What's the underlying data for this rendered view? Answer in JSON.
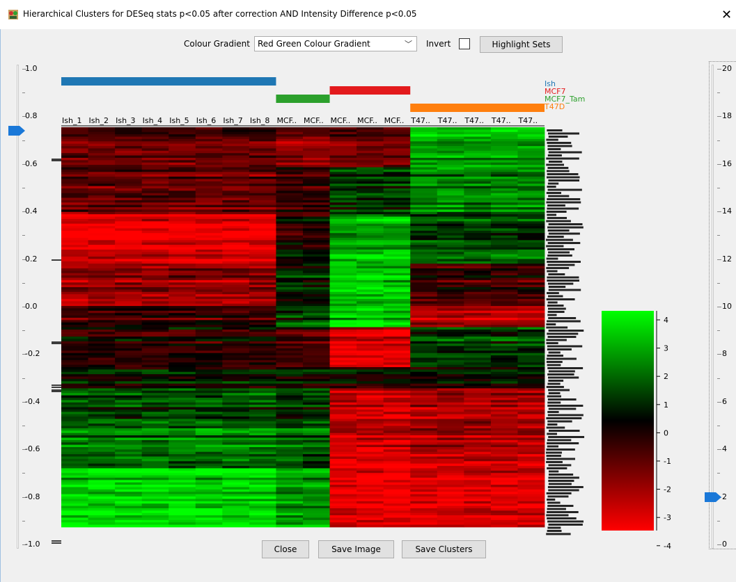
{
  "window": {
    "title": "Hierarchical Clusters for DESeq stats p<0.05 after correction AND Intensity Difference p<0.05",
    "close_glyph": "✕"
  },
  "toolbar": {
    "colour_gradient_label": "Colour Gradient",
    "colour_gradient_value": "Red Green Colour Gradient",
    "invert_label": "Invert",
    "invert_checked": false,
    "highlight_sets_label": "Highlight Sets"
  },
  "left_slider": {
    "ticks": [
      "1.0",
      "0.8",
      "0.6",
      "0.4",
      "0.2",
      "0.0",
      "-0.2",
      "-0.4",
      "-0.6",
      "-0.8",
      "-1.0"
    ],
    "thumb_value": 0.74
  },
  "right_slider": {
    "ticks": [
      "20",
      "18",
      "16",
      "14",
      "12",
      "10",
      "8",
      "6",
      "4",
      "2",
      "0"
    ],
    "thumb_value": 2
  },
  "heatmap": {
    "columns": [
      "Ish_1",
      "Ish_2",
      "Ish_3",
      "Ish_4",
      "Ish_5",
      "Ish_6",
      "Ish_7",
      "Ish_8",
      "MCF..",
      "MCF..",
      "MCF..",
      "MCF..",
      "MCF..",
      "T47..",
      "T47..",
      "T47..",
      "T47..",
      "T47.."
    ],
    "groups": [
      {
        "name": "Ish",
        "color": "#1f77b4"
      },
      {
        "name": "MCF7",
        "color": "#e31a1c"
      },
      {
        "name": "MCF7_Tam",
        "color": "#2ca02c"
      },
      {
        "name": "T47D",
        "color": "#ff7f0e"
      }
    ],
    "colors": {
      "high": "#00ff00",
      "mid": "#000000",
      "low": "#ff0000"
    }
  },
  "color_scale": {
    "ticks": [
      "4",
      "3",
      "2",
      "1",
      "0",
      "-1",
      "-2",
      "-3",
      "-4"
    ]
  },
  "buttons": {
    "close": "Close",
    "save_image": "Save Image",
    "save_clusters": "Save Clusters"
  }
}
